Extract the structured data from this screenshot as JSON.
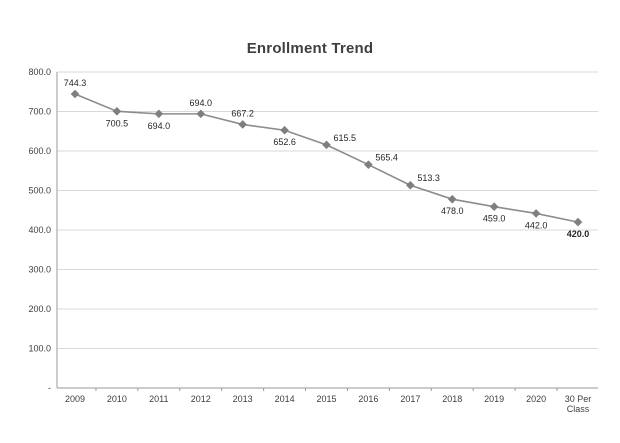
{
  "chart_data": {
    "type": "line",
    "title": "Enrollment Trend",
    "categories": [
      "2009",
      "2010",
      "2011",
      "2012",
      "2013",
      "2014",
      "2015",
      "2016",
      "2017",
      "2018",
      "2019",
      "2020",
      "30 Per\nClass"
    ],
    "values": [
      744.3,
      700.5,
      694.0,
      694.0,
      667.2,
      652.6,
      615.5,
      565.4,
      513.3,
      478.0,
      459.0,
      442.0,
      420.0
    ],
    "value_labels": [
      "744.3",
      "700.5",
      "694.0",
      "694.0",
      "667.2",
      "652.6",
      "615.5",
      "565.4",
      "513.3",
      "478.0",
      "459.0",
      "442.0",
      "420.0"
    ],
    "label_positions": [
      "above",
      "below",
      "below",
      "above",
      "above",
      "below",
      "right",
      "right",
      "right",
      "below",
      "below",
      "below",
      "below"
    ],
    "last_label_bold": true,
    "y_tick_labels": [
      "800.0",
      "700.0",
      "600.0",
      "500.0",
      "400.0",
      "300.0",
      "200.0",
      "100.0",
      "-"
    ],
    "ylim": [
      0,
      800
    ],
    "y_step": 100,
    "grid": true,
    "legend": "none",
    "marker": "diamond",
    "line_color": "#8c8c8c",
    "marker_color": "#7f7f7f",
    "title_color": "#3f3f3f"
  }
}
